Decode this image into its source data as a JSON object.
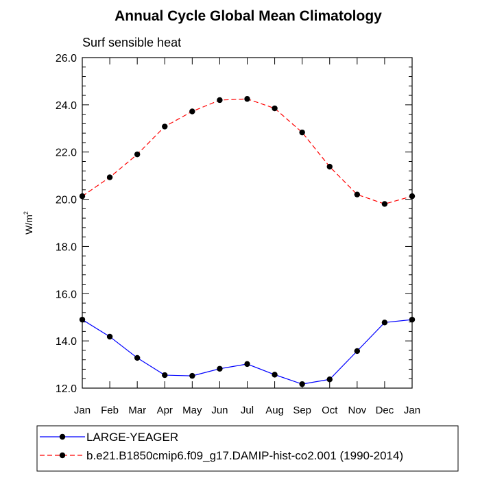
{
  "chart_data": {
    "type": "line",
    "title": "Annual Cycle Global Mean Climatology",
    "subtitle": "Surf sensible heat",
    "ylabel_base": "W/m",
    "ylabel_sup": "2",
    "ylim": [
      12.0,
      26.0
    ],
    "yticks": [
      "12.0",
      "14.0",
      "16.0",
      "18.0",
      "20.0",
      "22.0",
      "24.0",
      "26.0"
    ],
    "yminor_step": 0.4,
    "categories": [
      "Jan",
      "Feb",
      "Mar",
      "Apr",
      "May",
      "Jun",
      "Jul",
      "Aug",
      "Sep",
      "Oct",
      "Nov",
      "Dec",
      "Jan"
    ],
    "grid": false,
    "legend_position": "bottom",
    "series": [
      {
        "name": "LARGE-YEAGER",
        "color": "#0000ff",
        "dash": "solid",
        "values": [
          14.9,
          14.18,
          13.28,
          12.55,
          12.52,
          12.82,
          13.02,
          12.57,
          12.17,
          12.37,
          13.57,
          14.78,
          14.9
        ]
      },
      {
        "name": "b.e21.B1850cmip6.f09_g17.DAMIP-hist-co2.001 (1990-2014)",
        "color": "#ff0000",
        "dash": "dashed",
        "values": [
          20.13,
          20.93,
          21.9,
          23.08,
          23.72,
          24.2,
          24.25,
          23.85,
          22.83,
          21.38,
          20.2,
          19.8,
          20.13
        ]
      }
    ]
  }
}
